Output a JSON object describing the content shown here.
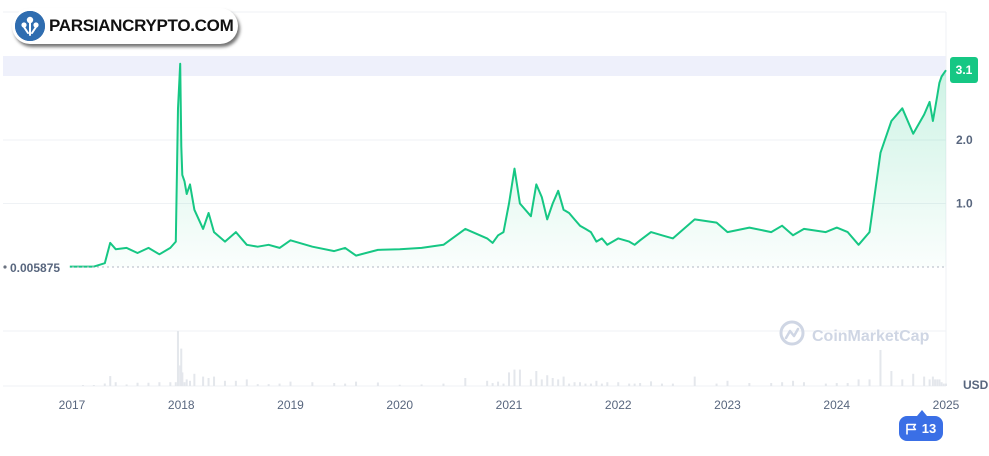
{
  "logo": {
    "text": "PARSIANCRYPTO.COM",
    "icon": "parsiancrypto-logo-icon"
  },
  "watermark": {
    "text": "CoinMarketCap",
    "icon": "coinmarketcap-logo-icon"
  },
  "event_badge": {
    "icon": "flag-icon",
    "count": "13"
  },
  "colors": {
    "line": "#16c784",
    "accent": "#16c784",
    "badge": "#3a6fe6",
    "highlight": "#eef0fb"
  },
  "chart_data": {
    "type": "area",
    "currency": "USD",
    "current_price_label": "3.1",
    "baseline_label": "0.005875",
    "ylim": [
      0,
      3.2
    ],
    "y_ticks": [
      1.0,
      2.0
    ],
    "y_tick_labels": [
      "1.0",
      "2.0"
    ],
    "x_tick_labels": [
      "2017",
      "2018",
      "2019",
      "2020",
      "2021",
      "2022",
      "2023",
      "2024",
      "2025"
    ],
    "x_ticks": [
      2017,
      2018,
      2019,
      2020,
      2021,
      2022,
      2023,
      2024,
      2025
    ],
    "grid": true,
    "series": [
      {
        "x": [
          2016.98,
          2017.1,
          2017.2,
          2017.3,
          2017.35,
          2017.4,
          2017.5,
          2017.6,
          2017.7,
          2017.8,
          2017.9,
          2017.95,
          2017.97,
          2017.99,
          2018.0,
          2018.01,
          2018.03,
          2018.05,
          2018.08,
          2018.12,
          2018.2,
          2018.25,
          2018.3,
          2018.4,
          2018.5,
          2018.6,
          2018.7,
          2018.8,
          2018.9,
          2019.0,
          2019.2,
          2019.4,
          2019.5,
          2019.6,
          2019.8,
          2020.0,
          2020.2,
          2020.4,
          2020.6,
          2020.8,
          2020.85,
          2020.9,
          2020.95,
          2021.0,
          2021.05,
          2021.1,
          2021.2,
          2021.25,
          2021.3,
          2021.35,
          2021.4,
          2021.45,
          2021.5,
          2021.55,
          2021.6,
          2021.65,
          2021.7,
          2021.75,
          2021.8,
          2021.85,
          2021.9,
          2022.0,
          2022.1,
          2022.15,
          2022.2,
          2022.3,
          2022.4,
          2022.5,
          2022.7,
          2022.9,
          2023.0,
          2023.2,
          2023.4,
          2023.5,
          2023.6,
          2023.7,
          2023.9,
          2024.0,
          2024.1,
          2024.2,
          2024.3,
          2024.4,
          2024.5,
          2024.6,
          2024.7,
          2024.8,
          2024.85,
          2024.88,
          2024.9,
          2024.92,
          2024.94,
          2024.96,
          2024.98,
          2025.0
        ],
        "y": [
          0.006,
          0.006,
          0.006,
          0.06,
          0.38,
          0.28,
          0.3,
          0.22,
          0.3,
          0.2,
          0.3,
          0.4,
          2.5,
          3.2,
          1.9,
          1.45,
          1.35,
          1.15,
          1.3,
          0.9,
          0.6,
          0.85,
          0.55,
          0.4,
          0.55,
          0.35,
          0.32,
          0.35,
          0.3,
          0.42,
          0.32,
          0.25,
          0.3,
          0.18,
          0.27,
          0.28,
          0.3,
          0.35,
          0.6,
          0.45,
          0.38,
          0.5,
          0.55,
          1.0,
          1.55,
          1.0,
          0.8,
          1.3,
          1.1,
          0.75,
          1.0,
          1.2,
          0.9,
          0.85,
          0.75,
          0.65,
          0.6,
          0.55,
          0.4,
          0.45,
          0.35,
          0.45,
          0.4,
          0.35,
          0.42,
          0.55,
          0.5,
          0.45,
          0.75,
          0.7,
          0.55,
          0.62,
          0.55,
          0.65,
          0.5,
          0.6,
          0.55,
          0.62,
          0.55,
          0.35,
          0.55,
          1.8,
          2.3,
          2.5,
          2.1,
          2.4,
          2.6,
          2.3,
          2.5,
          2.7,
          2.9,
          3.0,
          3.05,
          3.1
        ]
      }
    ]
  }
}
